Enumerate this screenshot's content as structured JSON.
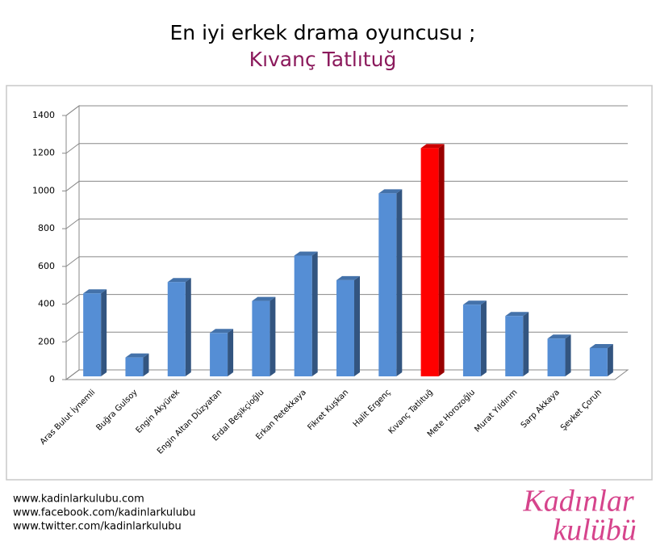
{
  "chart_data": {
    "type": "bar",
    "title": "En iyi erkek drama oyuncusu ;",
    "subtitle": "Kıvanç Tatlıtuğ",
    "categories": [
      "Aras Bulut İynemli",
      "Buğra Gulsoy",
      "Engin Akyürek",
      "Engin Altan Düzyatan",
      "Erdal Beşikçioğlu",
      "Erkan Petekkaya",
      "Fikret Kuşkan",
      "Halit Ergenç",
      "Kıvanç Tatlıtuğ",
      "Mete Horozoğlu",
      "Murat Yıldırım",
      "Sarp Akkaya",
      "Şevket Çoruh"
    ],
    "values": [
      440,
      100,
      500,
      230,
      400,
      640,
      510,
      970,
      1210,
      380,
      320,
      200,
      150
    ],
    "colors": [
      "#558ed5",
      "#558ed5",
      "#558ed5",
      "#558ed5",
      "#558ed5",
      "#558ed5",
      "#558ed5",
      "#558ed5",
      "#ff0000",
      "#558ed5",
      "#558ed5",
      "#558ed5",
      "#558ed5"
    ],
    "ylim": [
      0,
      1400
    ],
    "yticks": [
      0,
      200,
      400,
      600,
      800,
      1000,
      1200,
      1400
    ],
    "grid": true
  },
  "footer": {
    "links": [
      "www.kadinlarkulubu.com",
      "www.facebook.com/kadinlarkulubu",
      "www.twitter.com/kadinlarkulubu"
    ],
    "logo": [
      "Kadınlar",
      "kulübü"
    ]
  }
}
